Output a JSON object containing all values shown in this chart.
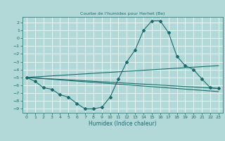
{
  "title": "Courbe de l'humidex pour Herhet (Be)",
  "xlabel": "Humidex (Indice chaleur)",
  "background_color": "#b2d8d8",
  "grid_color": "#ffffff",
  "line_color": "#1a6b6b",
  "xlim": [
    -0.5,
    23.5
  ],
  "ylim": [
    -9.5,
    2.7
  ],
  "xticks": [
    0,
    1,
    2,
    3,
    4,
    5,
    6,
    7,
    8,
    9,
    10,
    11,
    12,
    13,
    14,
    15,
    16,
    17,
    18,
    19,
    20,
    21,
    22,
    23
  ],
  "yticks": [
    -9,
    -8,
    -7,
    -6,
    -5,
    -4,
    -3,
    -2,
    -1,
    0,
    1,
    2
  ],
  "series": [
    {
      "x": [
        0,
        1,
        2,
        3,
        4,
        5,
        6,
        7,
        8,
        9,
        10,
        11,
        12,
        13,
        14,
        15,
        16,
        17,
        18,
        19,
        20,
        21,
        22,
        23
      ],
      "y": [
        -5.0,
        -5.5,
        -6.3,
        -6.5,
        -7.2,
        -7.5,
        -8.3,
        -9.0,
        -9.0,
        -8.8,
        -7.5,
        -5.2,
        -3.0,
        -1.5,
        1.0,
        2.2,
        2.2,
        0.7,
        -2.3,
        -3.5,
        -4.0,
        -5.2,
        -6.3,
        -6.4
      ],
      "marker": "D",
      "markersize": 2.0,
      "linewidth": 0.8
    },
    {
      "x": [
        0,
        23
      ],
      "y": [
        -5.0,
        -6.4
      ],
      "linewidth": 0.8,
      "linestyle": "-"
    },
    {
      "x": [
        0,
        23
      ],
      "y": [
        -5.0,
        -3.5
      ],
      "linewidth": 0.8,
      "linestyle": "-"
    },
    {
      "x": [
        0,
        23
      ],
      "y": [
        -5.0,
        -6.8
      ],
      "linewidth": 0.8,
      "linestyle": "-"
    }
  ],
  "title_fontsize": 4.5,
  "xlabel_fontsize": 5.5,
  "tick_fontsize": 4.5
}
